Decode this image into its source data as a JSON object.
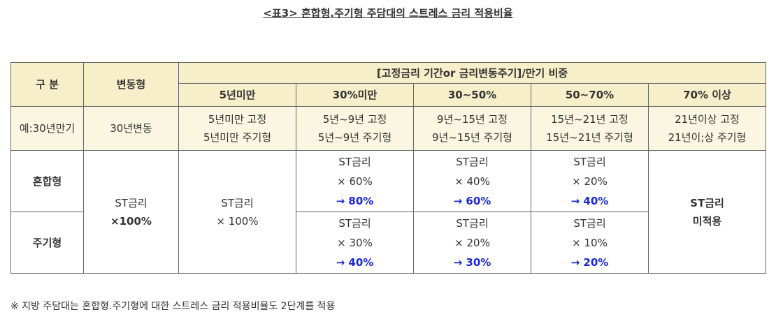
{
  "caption": "<표3> 혼합형.주기형 주담대의 스트레스 금리 적용비율",
  "headers": {
    "category": "구 분",
    "variable": "변동형",
    "group": "[고정금리 기간or 금리변동주기]/만기 비중",
    "cols": [
      "5년미만",
      "30%미만",
      "30~50%",
      "50~70%",
      "70% 이상"
    ]
  },
  "example": {
    "label": "예:30년만기",
    "variable": "30년변동",
    "cells": [
      [
        "5년미만 고정",
        "5년미만 주기형"
      ],
      [
        "5년~9년 고정",
        "5년~9년 주기형"
      ],
      [
        "9년~15년 고정",
        "9년~15년 주기형"
      ],
      [
        "15년~21년 고정",
        "15년~21년 주기형"
      ],
      [
        "21년이상 고정",
        "21년이;상 주기형"
      ]
    ]
  },
  "rows": {
    "mixed": {
      "label": "혼합형",
      "cells": [
        [
          "ST금리",
          "× 60%",
          "→ 80%"
        ],
        [
          "ST금리",
          "× 40%",
          "→ 60%"
        ],
        [
          "ST금리",
          "× 20%",
          "→ 40%"
        ]
      ]
    },
    "periodic": {
      "label": "주기형",
      "cells": [
        [
          "ST금리",
          "× 30%",
          "→ 40%"
        ],
        [
          "ST금리",
          "× 20%",
          "→ 30%"
        ],
        [
          "ST금리",
          "× 10%",
          "→ 20%"
        ]
      ]
    },
    "variable_merged": [
      "ST금리",
      "×100%"
    ],
    "under5_merged": [
      "ST금리",
      "× 100%"
    ],
    "over70_merged": [
      "ST금리",
      "미적용"
    ]
  },
  "note": "※ 지방 주담대는 혼합형.주기형에 대한 스트레스 금리 적용비율도 2단계를 적용",
  "colors": {
    "header_bg": "#f7efc9",
    "subheader_bg": "#fbf6e1",
    "accent_blue": "#1a27d6",
    "border": "#666666"
  }
}
